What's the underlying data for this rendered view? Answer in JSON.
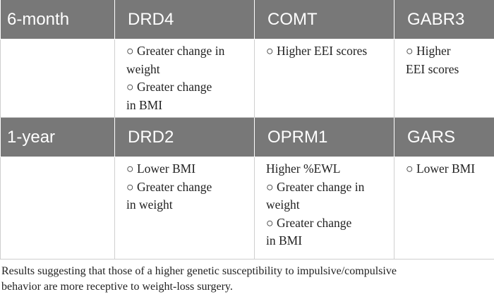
{
  "table": {
    "sections": [
      {
        "headers": [
          "6-month",
          "DRD4",
          "COMT",
          "GABR3"
        ],
        "cells": [
          [],
          [
            "○ Greater change in",
            "weight",
            "○ Greater change",
            "in BMI"
          ],
          [
            "○ Higher EEI scores"
          ],
          [
            "○ Higher",
            "EEI scores"
          ]
        ]
      },
      {
        "headers": [
          "1-year",
          "DRD2",
          "OPRM1",
          "GARS"
        ],
        "cells": [
          [],
          [
            "○ Lower BMI",
            "○ Greater change",
            "in weight"
          ],
          [
            "Higher %EWL",
            "○ Greater change in",
            "weight",
            "○ Greater change",
            "in BMI"
          ],
          [
            "○ Lower BMI"
          ]
        ]
      }
    ]
  },
  "caption": [
    "Results suggesting that those of a higher genetic susceptibility to impulsive/compulsive",
    "behavior are more receptive to weight-loss surgery."
  ]
}
